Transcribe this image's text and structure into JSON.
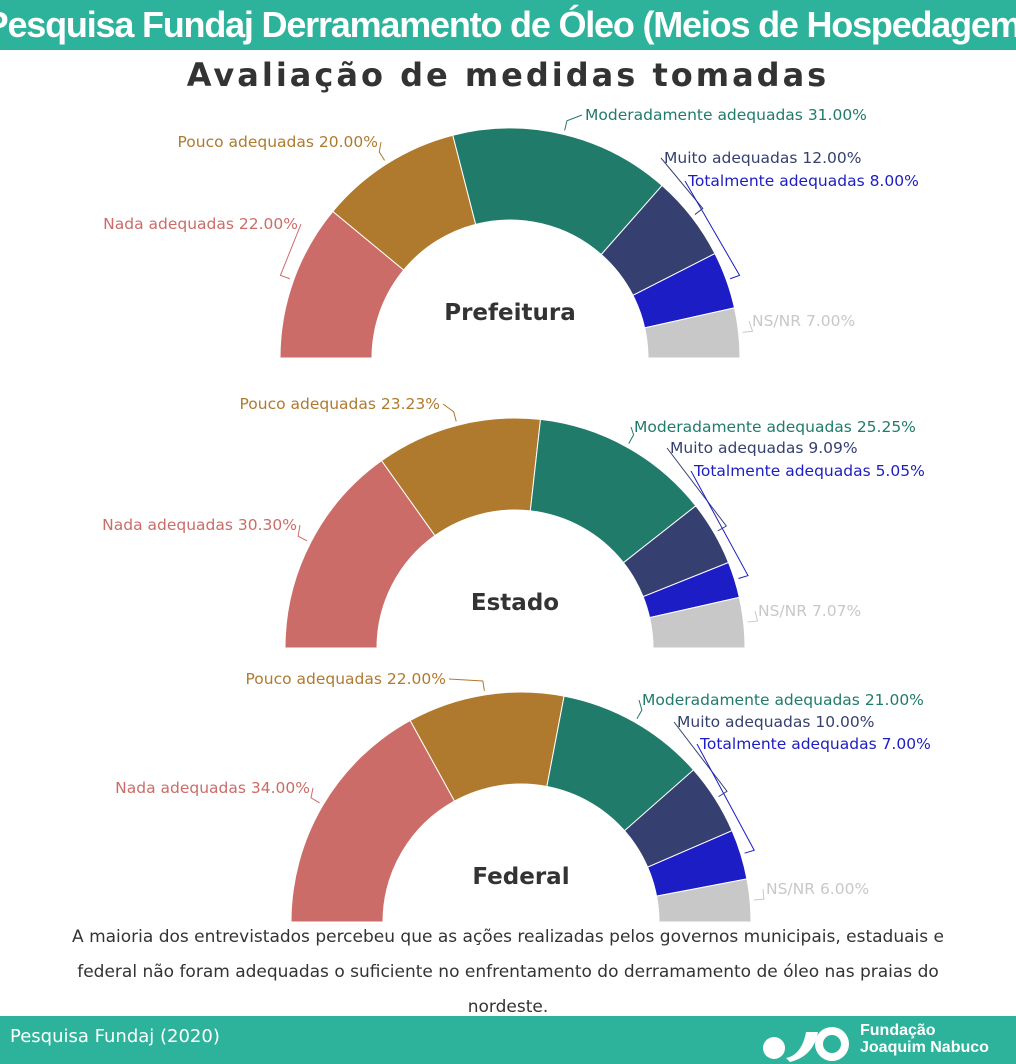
{
  "header": {
    "title": "Pesquisa Fundaj Derramamento de Óleo (Meios de Hospedagem)"
  },
  "subtitle": "Avaliação de medidas tomadas",
  "colors": {
    "header_bg": "#2db39b",
    "nada": "#cc6c68",
    "pouco": "#b07a2e",
    "moderadamente": "#217b6b",
    "muito": "#364070",
    "totalmente": "#1c1dc4",
    "nsnr": "#c8c8c8"
  },
  "chart_data": [
    {
      "type": "pie",
      "subtype": "half-donut",
      "center_label": "Prefeitura",
      "categories": [
        "Nada adequadas",
        "Pouco adequadas",
        "Moderadamente adequadas",
        "Muito adequadas",
        "Totalmente adequadas",
        "NS/NR"
      ],
      "values": [
        22.0,
        20.0,
        31.0,
        12.0,
        8.0,
        7.0
      ],
      "labels": [
        "Nada adequadas 22.00%",
        "Pouco adequadas 20.00%",
        "Moderadamente adequadas 31.00%",
        "Muito adequadas 12.00%",
        "Totalmente adequadas 8.00%",
        "NS/NR 7.00%"
      ]
    },
    {
      "type": "pie",
      "subtype": "half-donut",
      "center_label": "Estado",
      "categories": [
        "Nada adequadas",
        "Pouco adequadas",
        "Moderadamente adequadas",
        "Muito adequadas",
        "Totalmente adequadas",
        "NS/NR"
      ],
      "values": [
        30.3,
        23.23,
        25.25,
        9.09,
        5.05,
        7.07
      ],
      "labels": [
        "Nada adequadas 30.30%",
        "Pouco adequadas 23.23%",
        "Moderadamente adequadas 25.25%",
        "Muito adequadas 9.09%",
        "Totalmente adequadas 5.05%",
        "NS/NR 7.07%"
      ]
    },
    {
      "type": "pie",
      "subtype": "half-donut",
      "center_label": "Federal",
      "categories": [
        "Nada adequadas",
        "Pouco adequadas",
        "Moderadamente adequadas",
        "Muito adequadas",
        "Totalmente adequadas",
        "NS/NR"
      ],
      "values": [
        34.0,
        22.0,
        21.0,
        10.0,
        7.0,
        6.0
      ],
      "labels": [
        "Nada adequadas 34.00%",
        "Pouco adequadas 22.00%",
        "Moderadamente adequadas 21.00%",
        "Muito adequadas 10.00%",
        "Totalmente adequadas 7.00%",
        "NS/NR 6.00%"
      ]
    }
  ],
  "summary": "A maioria dos entrevistados percebeu que as ações realizadas pelos governos municipais, estaduais e federal não foram adequadas o suficiente no enfrentamento do derramamento de óleo nas praias do nordeste.",
  "footer": {
    "source": "Pesquisa Fundaj (2020)",
    "logo_line1": "Fundação",
    "logo_line2": "Joaquim Nabuco"
  }
}
